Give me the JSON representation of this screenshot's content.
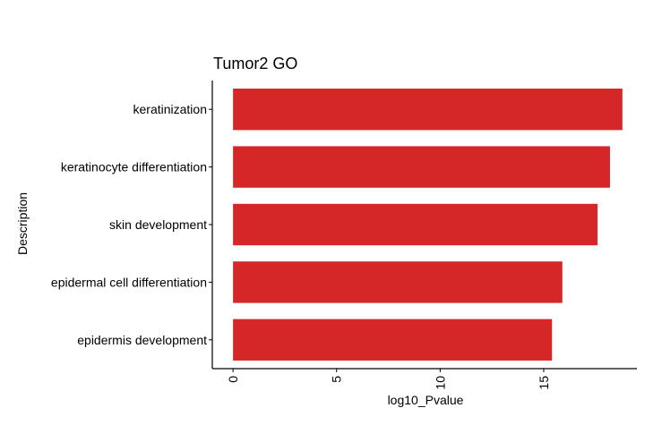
{
  "chart_data": {
    "type": "bar",
    "orientation": "horizontal",
    "title": "Tumor2 GO",
    "xlabel": "log10_Pvalue",
    "ylabel": "Description",
    "categories": [
      "keratinization",
      "keratinocyte differentiation",
      "skin development",
      "epidermal cell differentiation",
      "epidermis development"
    ],
    "values": [
      18.8,
      18.2,
      17.6,
      15.9,
      15.4
    ],
    "xlim": [
      -1,
      19.5
    ],
    "xticks": [
      "0",
      "5",
      "10",
      "15"
    ],
    "bar_color": "#d62728",
    "grid": false
  }
}
